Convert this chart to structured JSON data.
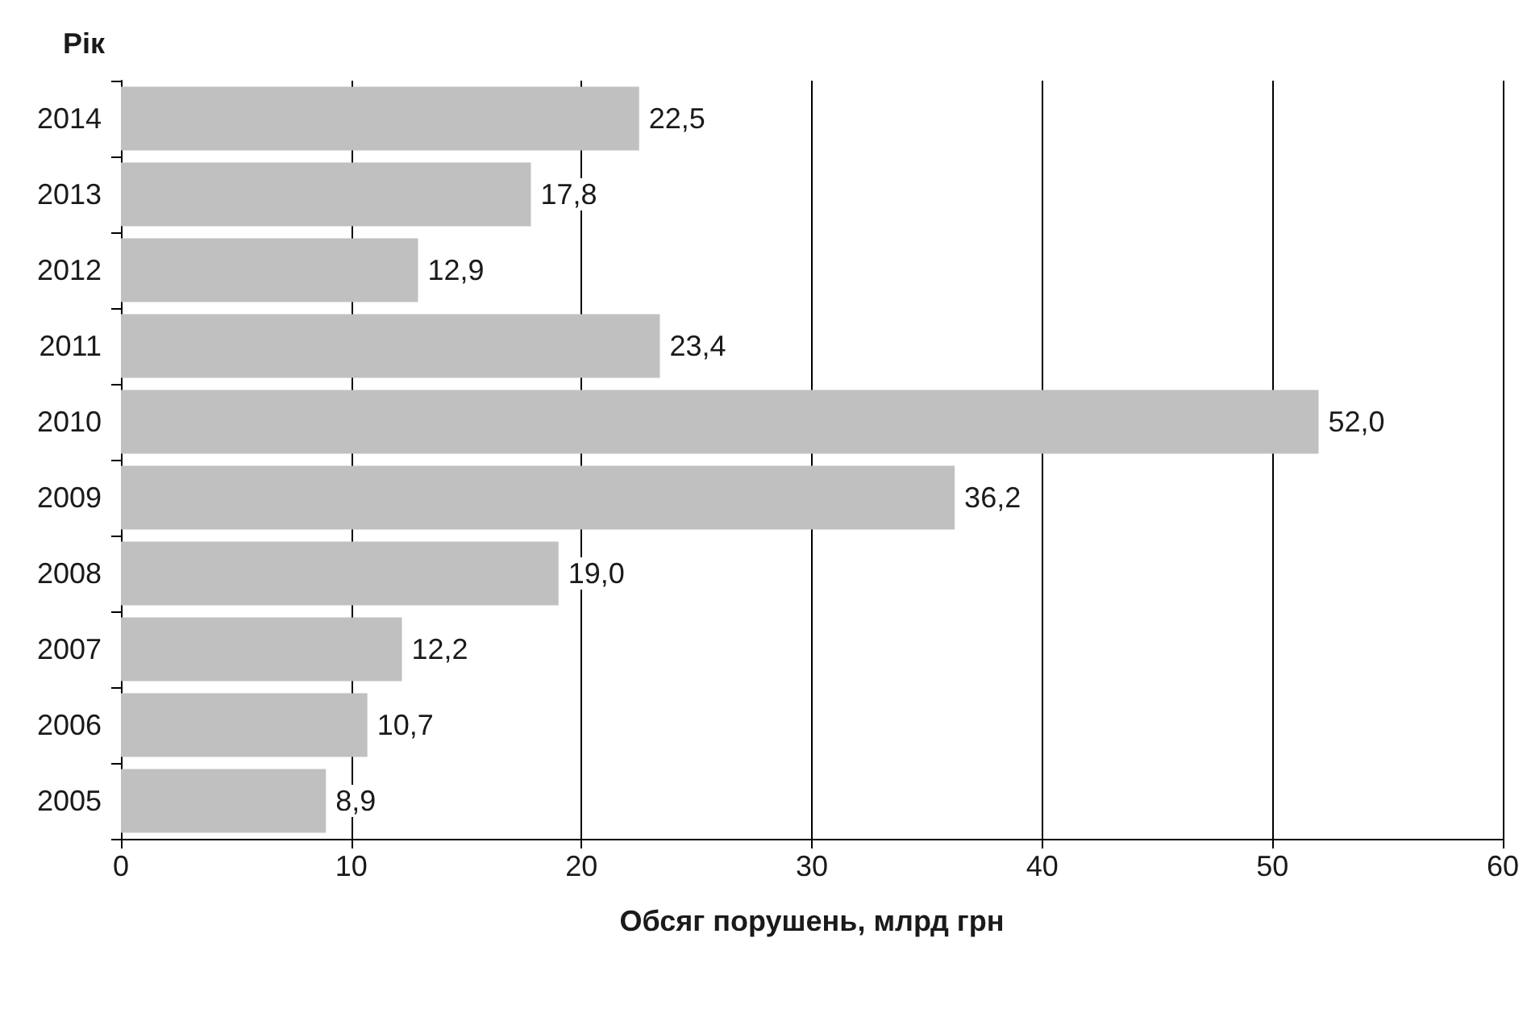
{
  "chart_data": {
    "type": "bar",
    "orientation": "horizontal",
    "ylabel": "Рік",
    "xlabel": "Обсяг порушень, млрд грн",
    "categories": [
      "2014",
      "2013",
      "2012",
      "2011",
      "2010",
      "2009",
      "2008",
      "2007",
      "2006",
      "2005"
    ],
    "values": [
      22.5,
      17.8,
      12.9,
      23.4,
      52.0,
      36.2,
      19.0,
      12.2,
      10.7,
      8.9
    ],
    "value_labels": [
      "22,5",
      "17,8",
      "12,9",
      "23,4",
      "52,0",
      "36,2",
      "19,0",
      "12,2",
      "10,7",
      "8,9"
    ],
    "color": "#c0c0c0",
    "xlim": [
      0,
      60
    ],
    "xticks": [
      0,
      10,
      20,
      30,
      40,
      50,
      60
    ],
    "grid": "x"
  }
}
